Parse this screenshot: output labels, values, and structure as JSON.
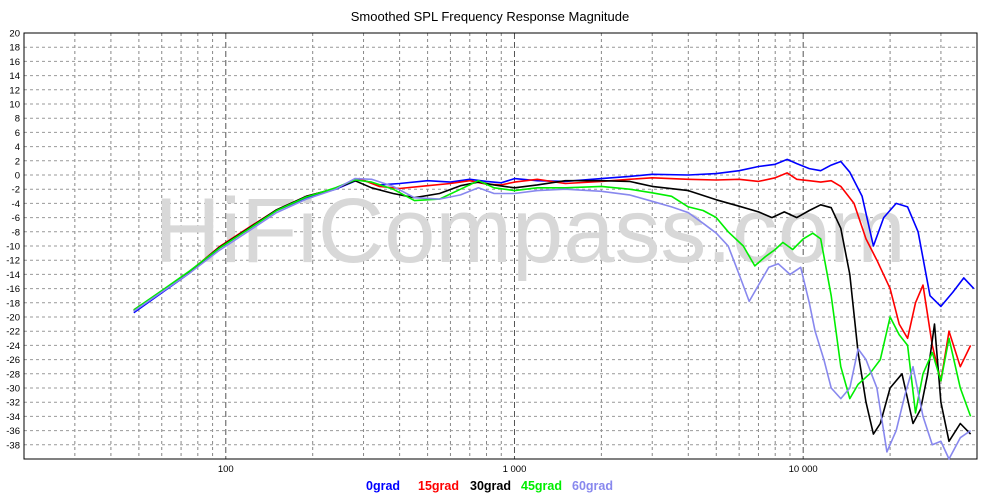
{
  "chart_data": {
    "type": "line",
    "title": "Smoothed SPL Frequency Response Magnitude",
    "x_scale": "log",
    "xlim": [
      20,
      40000
    ],
    "ylim": [
      -40,
      20
    ],
    "grid": true,
    "legend_position": "bottom-center",
    "x_tick_labels": [
      {
        "x": 100,
        "label": "100"
      },
      {
        "x": 1000,
        "label": "1 000"
      },
      {
        "x": 10000,
        "label": "10 000"
      }
    ],
    "y_ticks": [
      20,
      18,
      16,
      14,
      12,
      10,
      8,
      6,
      4,
      2,
      0,
      -2,
      -4,
      -6,
      -8,
      -10,
      -12,
      -14,
      -16,
      -18,
      -20,
      -22,
      -24,
      -26,
      -28,
      -30,
      -32,
      -34,
      -36,
      -38
    ],
    "watermark": "HiFiCompass.com",
    "series": [
      {
        "name": "0grad",
        "color": "#0000ff",
        "points": [
          [
            48,
            -19.4
          ],
          [
            60,
            -16.6
          ],
          [
            75,
            -13.8
          ],
          [
            95,
            -10.3
          ],
          [
            120,
            -7.6
          ],
          [
            150,
            -5.0
          ],
          [
            190,
            -3.2
          ],
          [
            240,
            -2.0
          ],
          [
            290,
            -0.6
          ],
          [
            340,
            -1.4
          ],
          [
            400,
            -1.2
          ],
          [
            500,
            -0.8
          ],
          [
            600,
            -1.0
          ],
          [
            700,
            -0.6
          ],
          [
            800,
            -0.9
          ],
          [
            900,
            -1.1
          ],
          [
            1000,
            -0.5
          ],
          [
            1200,
            -0.8
          ],
          [
            1500,
            -0.9
          ],
          [
            2000,
            -0.5
          ],
          [
            2500,
            -0.2
          ],
          [
            3000,
            0.1
          ],
          [
            4000,
            0.0
          ],
          [
            5000,
            0.2
          ],
          [
            6000,
            0.6
          ],
          [
            7000,
            1.2
          ],
          [
            8000,
            1.5
          ],
          [
            8800,
            2.2
          ],
          [
            9500,
            1.6
          ],
          [
            10500,
            0.9
          ],
          [
            11500,
            0.6
          ],
          [
            12500,
            1.4
          ],
          [
            13500,
            1.9
          ],
          [
            14500,
            0.4
          ],
          [
            16000,
            -3.0
          ],
          [
            17500,
            -10.0
          ],
          [
            19000,
            -6.0
          ],
          [
            21000,
            -4.0
          ],
          [
            23000,
            -4.5
          ],
          [
            25000,
            -8.0
          ],
          [
            27500,
            -17.0
          ],
          [
            30000,
            -18.5
          ],
          [
            33000,
            -16.5
          ],
          [
            36000,
            -14.5
          ],
          [
            39000,
            -16.0
          ],
          [
            42000,
            -21.0
          ],
          [
            45000,
            -28.0
          ],
          [
            48000,
            -35.0
          ]
        ]
      },
      {
        "name": "15grad",
        "color": "#ff0000",
        "points": [
          [
            48,
            -19.0
          ],
          [
            60,
            -16.4
          ],
          [
            75,
            -13.6
          ],
          [
            95,
            -10.1
          ],
          [
            120,
            -7.4
          ],
          [
            150,
            -4.9
          ],
          [
            190,
            -3.0
          ],
          [
            240,
            -1.9
          ],
          [
            290,
            -0.5
          ],
          [
            340,
            -1.6
          ],
          [
            400,
            -1.9
          ],
          [
            500,
            -1.5
          ],
          [
            600,
            -1.2
          ],
          [
            700,
            -0.8
          ],
          [
            800,
            -1.3
          ],
          [
            900,
            -1.4
          ],
          [
            1000,
            -1.0
          ],
          [
            1200,
            -0.6
          ],
          [
            1500,
            -1.2
          ],
          [
            2000,
            -0.9
          ],
          [
            2500,
            -0.6
          ],
          [
            3000,
            -0.4
          ],
          [
            4000,
            -0.6
          ],
          [
            5000,
            -0.7
          ],
          [
            6000,
            -0.6
          ],
          [
            7000,
            -0.9
          ],
          [
            8000,
            -0.4
          ],
          [
            8800,
            0.3
          ],
          [
            9500,
            -0.6
          ],
          [
            10500,
            -0.8
          ],
          [
            11500,
            -1.0
          ],
          [
            12500,
            -0.8
          ],
          [
            13500,
            -1.6
          ],
          [
            15000,
            -4.0
          ],
          [
            16500,
            -9.0
          ],
          [
            18000,
            -12.0
          ],
          [
            20000,
            -16.0
          ],
          [
            21500,
            -21.0
          ],
          [
            23000,
            -23.0
          ],
          [
            24500,
            -18.0
          ],
          [
            26000,
            -15.5
          ],
          [
            28000,
            -24.0
          ],
          [
            30000,
            -29.0
          ],
          [
            32000,
            -22.0
          ],
          [
            35000,
            -27.0
          ],
          [
            38000,
            -24.0
          ],
          [
            41000,
            -32.0
          ],
          [
            44000,
            -35.0
          ],
          [
            47000,
            -38.5
          ],
          [
            50000,
            -40.0
          ]
        ]
      },
      {
        "name": "30grad",
        "color": "#000000",
        "points": [
          [
            48,
            -19.1
          ],
          [
            60,
            -16.4
          ],
          [
            75,
            -13.6
          ],
          [
            95,
            -10.2
          ],
          [
            120,
            -7.5
          ],
          [
            150,
            -4.9
          ],
          [
            190,
            -3.0
          ],
          [
            240,
            -1.9
          ],
          [
            280,
            -0.8
          ],
          [
            320,
            -1.8
          ],
          [
            380,
            -2.6
          ],
          [
            450,
            -3.2
          ],
          [
            550,
            -2.6
          ],
          [
            650,
            -1.5
          ],
          [
            750,
            -1.0
          ],
          [
            850,
            -1.4
          ],
          [
            1000,
            -1.8
          ],
          [
            1200,
            -1.4
          ],
          [
            1500,
            -0.8
          ],
          [
            2000,
            -0.8
          ],
          [
            2500,
            -0.9
          ],
          [
            3000,
            -1.6
          ],
          [
            4000,
            -2.2
          ],
          [
            5000,
            -3.5
          ],
          [
            6000,
            -4.4
          ],
          [
            7000,
            -5.2
          ],
          [
            7800,
            -6.0
          ],
          [
            8600,
            -5.2
          ],
          [
            9500,
            -6.0
          ],
          [
            10500,
            -5.0
          ],
          [
            11500,
            -4.2
          ],
          [
            12500,
            -4.6
          ],
          [
            13500,
            -7.5
          ],
          [
            14500,
            -14.0
          ],
          [
            15500,
            -25.0
          ],
          [
            16500,
            -32.0
          ],
          [
            17500,
            -36.5
          ],
          [
            18500,
            -35.0
          ],
          [
            20000,
            -30.0
          ],
          [
            22000,
            -28.0
          ],
          [
            24000,
            -35.0
          ],
          [
            25500,
            -33.0
          ],
          [
            27000,
            -28.0
          ],
          [
            28500,
            -21.0
          ],
          [
            30000,
            -32.0
          ],
          [
            32000,
            -37.5
          ],
          [
            35000,
            -35.0
          ],
          [
            38000,
            -36.5
          ],
          [
            41000,
            -35.0
          ],
          [
            44000,
            -37.5
          ]
        ]
      },
      {
        "name": "45grad",
        "color": "#00ee00",
        "points": [
          [
            48,
            -19.0
          ],
          [
            60,
            -16.3
          ],
          [
            75,
            -13.5
          ],
          [
            95,
            -10.3
          ],
          [
            120,
            -7.6
          ],
          [
            150,
            -5.0
          ],
          [
            190,
            -3.1
          ],
          [
            240,
            -1.8
          ],
          [
            280,
            -0.7
          ],
          [
            320,
            -1.0
          ],
          [
            380,
            -2.0
          ],
          [
            450,
            -3.6
          ],
          [
            550,
            -3.4
          ],
          [
            650,
            -2.0
          ],
          [
            750,
            -0.8
          ],
          [
            850,
            -1.8
          ],
          [
            1000,
            -2.2
          ],
          [
            1200,
            -1.8
          ],
          [
            1500,
            -1.8
          ],
          [
            2000,
            -1.6
          ],
          [
            2500,
            -2.0
          ],
          [
            3000,
            -2.5
          ],
          [
            3500,
            -3.0
          ],
          [
            4000,
            -4.5
          ],
          [
            4500,
            -5.0
          ],
          [
            5000,
            -6.0
          ],
          [
            5500,
            -8.0
          ],
          [
            6200,
            -10.0
          ],
          [
            6800,
            -12.8
          ],
          [
            7400,
            -11.5
          ],
          [
            8000,
            -10.5
          ],
          [
            8500,
            -9.5
          ],
          [
            9200,
            -10.5
          ],
          [
            10000,
            -9.0
          ],
          [
            10800,
            -8.2
          ],
          [
            11500,
            -9.0
          ],
          [
            12500,
            -17.0
          ],
          [
            13500,
            -27.0
          ],
          [
            14500,
            -31.5
          ],
          [
            15500,
            -29.5
          ],
          [
            17000,
            -28.0
          ],
          [
            18500,
            -26.0
          ],
          [
            20000,
            -20.0
          ],
          [
            21500,
            -22.5
          ],
          [
            23000,
            -24.0
          ],
          [
            24500,
            -33.5
          ],
          [
            26000,
            -28.0
          ],
          [
            28000,
            -25.0
          ],
          [
            30000,
            -29.0
          ],
          [
            32000,
            -23.0
          ],
          [
            35000,
            -30.0
          ],
          [
            38000,
            -34.0
          ],
          [
            41000,
            -32.0
          ],
          [
            44000,
            -36.0
          ],
          [
            47000,
            -39.0
          ]
        ]
      },
      {
        "name": "60grad",
        "color": "#8888ee",
        "points": [
          [
            48,
            -19.2
          ],
          [
            60,
            -16.5
          ],
          [
            75,
            -13.8
          ],
          [
            95,
            -10.6
          ],
          [
            120,
            -7.9
          ],
          [
            150,
            -5.3
          ],
          [
            190,
            -3.4
          ],
          [
            240,
            -2.0
          ],
          [
            280,
            -0.5
          ],
          [
            320,
            -0.6
          ],
          [
            380,
            -1.6
          ],
          [
            450,
            -3.2
          ],
          [
            550,
            -3.4
          ],
          [
            650,
            -2.8
          ],
          [
            750,
            -1.8
          ],
          [
            850,
            -2.6
          ],
          [
            1000,
            -2.6
          ],
          [
            1200,
            -2.2
          ],
          [
            1500,
            -2.0
          ],
          [
            2000,
            -2.3
          ],
          [
            2500,
            -2.8
          ],
          [
            3000,
            -3.7
          ],
          [
            3500,
            -4.5
          ],
          [
            4000,
            -5.3
          ],
          [
            4500,
            -6.8
          ],
          [
            5000,
            -8.2
          ],
          [
            5500,
            -10.0
          ],
          [
            6000,
            -14.0
          ],
          [
            6500,
            -17.8
          ],
          [
            7000,
            -15.5
          ],
          [
            7600,
            -13.0
          ],
          [
            8200,
            -12.5
          ],
          [
            9000,
            -14.0
          ],
          [
            9800,
            -13.0
          ],
          [
            10500,
            -18.0
          ],
          [
            11000,
            -22.0
          ],
          [
            11800,
            -26.0
          ],
          [
            12500,
            -30.0
          ],
          [
            13500,
            -31.5
          ],
          [
            14500,
            -30.0
          ],
          [
            15500,
            -24.5
          ],
          [
            16500,
            -26.0
          ],
          [
            18000,
            -30.0
          ],
          [
            19500,
            -39.0
          ],
          [
            21000,
            -36.0
          ],
          [
            22500,
            -31.0
          ],
          [
            24000,
            -27.0
          ],
          [
            26000,
            -34.0
          ],
          [
            28000,
            -38.0
          ],
          [
            30000,
            -37.5
          ],
          [
            32000,
            -40.5
          ],
          [
            35000,
            -37.0
          ],
          [
            38000,
            -36.0
          ]
        ]
      }
    ]
  }
}
